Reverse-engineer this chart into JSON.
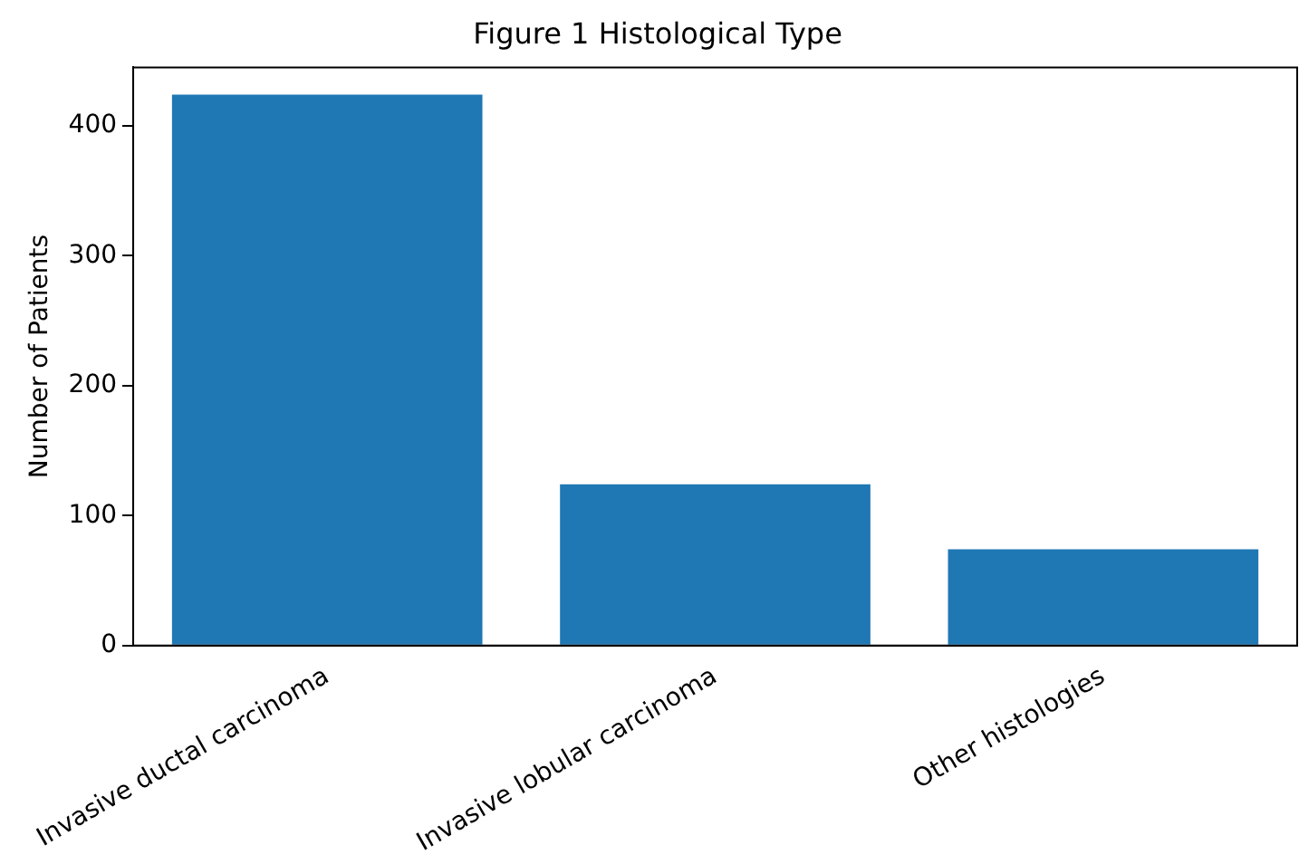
{
  "chart_data": {
    "type": "bar",
    "title": "Figure 1 Histological Type",
    "ylabel": "Number of Patients",
    "categories": [
      "Invasive ductal carcinoma",
      "Invasive lobular carcinoma",
      "Other histologies"
    ],
    "values": [
      424,
      124,
      74
    ],
    "color": "#1f77b4",
    "ylim": [
      0,
      445
    ],
    "yticks": [
      0,
      100,
      200,
      300,
      400
    ],
    "grid": false,
    "legend": false
  }
}
